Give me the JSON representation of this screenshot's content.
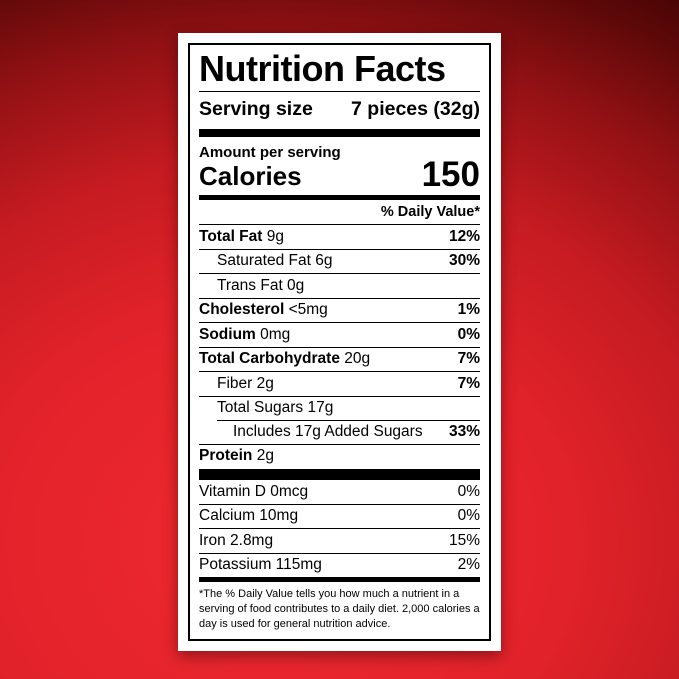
{
  "colors": {
    "card_background": "#ffffff",
    "label_ink": "#000000",
    "background_red_bright": "#ef2931",
    "background_red_mid": "#e2222a",
    "background_red_dark": "#470404"
  },
  "label": {
    "title": "Nutrition Facts",
    "serving": {
      "label": "Serving size",
      "value": "7 pieces (32g)"
    },
    "amount_per_serving": "Amount per serving",
    "calories": {
      "label": "Calories",
      "value": "150"
    },
    "daily_value_header": "% Daily Value*",
    "nutrient_rows": [
      {
        "bold": "Total Fat",
        "rest": " 9g",
        "pct": "12%",
        "indent": 0,
        "line": "full"
      },
      {
        "bold": "",
        "rest": "Saturated Fat 6g",
        "pct": "30%",
        "indent": 1,
        "line": "full"
      },
      {
        "bold": "",
        "rest": "Trans Fat 0g",
        "pct": "",
        "indent": 1,
        "line": "full"
      },
      {
        "bold": "Cholesterol",
        "rest": " <5mg",
        "pct": "1%",
        "indent": 0,
        "line": "full"
      },
      {
        "bold": "Sodium",
        "rest": " 0mg",
        "pct": "0%",
        "indent": 0,
        "line": "full"
      },
      {
        "bold": "Total Carbohydrate",
        "rest": " 20g",
        "pct": "7%",
        "indent": 0,
        "line": "full"
      },
      {
        "bold": "",
        "rest": "Fiber 2g",
        "pct": "7%",
        "indent": 1,
        "line": "full"
      },
      {
        "bold": "",
        "rest": "Total Sugars 17g",
        "pct": "",
        "indent": 1,
        "line": "full"
      },
      {
        "bold": "",
        "rest": "Includes 17g Added Sugars",
        "pct": "33%",
        "indent": 2,
        "line": "indent"
      },
      {
        "bold": "Protein",
        "rest": " 2g",
        "pct": "",
        "indent": 0,
        "line": "full"
      }
    ],
    "vitamin_rows": [
      {
        "name": "Vitamin D 0mcg",
        "pct": "0%",
        "line": "none"
      },
      {
        "name": "Calcium 10mg",
        "pct": "0%",
        "line": "full"
      },
      {
        "name": "Iron 2.8mg",
        "pct": "15%",
        "line": "full"
      },
      {
        "name": "Potassium 115mg",
        "pct": "2%",
        "line": "full"
      }
    ],
    "footnote": "*The % Daily Value tells you how much a nutrient in a serving of food contributes to a daily diet. 2,000 calories a day is used for general nutrition advice."
  }
}
